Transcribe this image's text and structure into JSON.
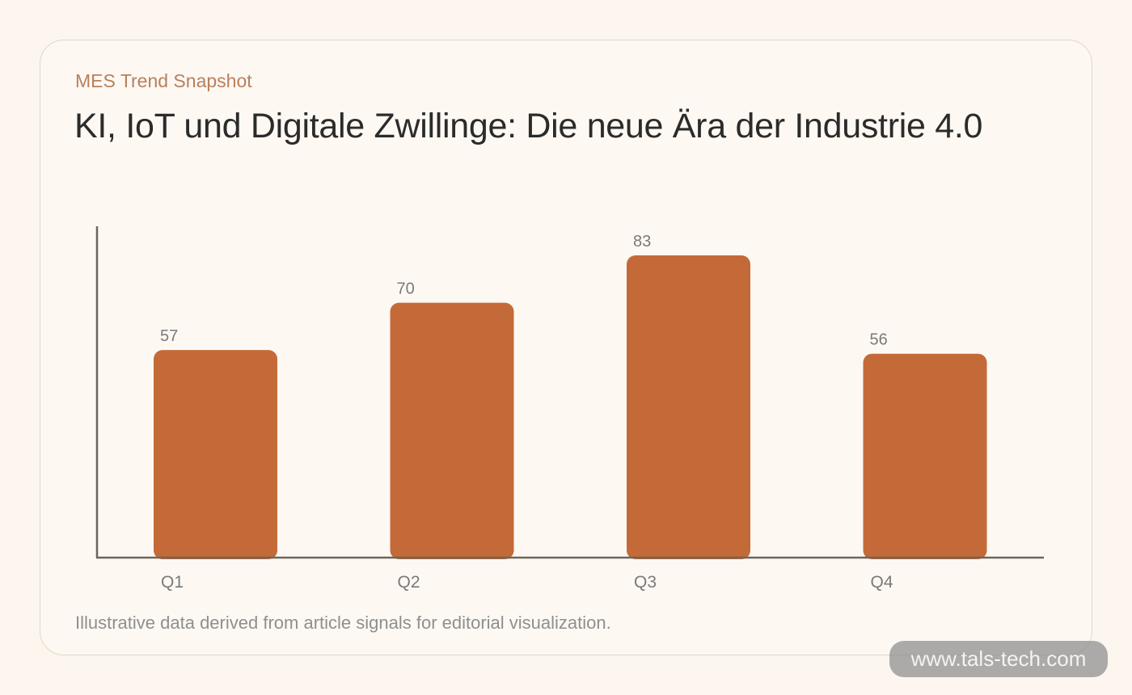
{
  "header": {
    "eyebrow": "MES Trend Snapshot",
    "title": "KI, IoT und Digitale Zwillinge: Die neue Ära der Industrie 4.0"
  },
  "footer": {
    "note": "Illustrative data derived from article signals for editorial visualization."
  },
  "watermark": {
    "text": "www.tals-tech.com"
  },
  "colors": {
    "background": "#fcf6ef",
    "card": "#fdf8f2",
    "bar": "#c46a38",
    "axis": "#6e6558",
    "eyebrow": "#b9805c",
    "label": "#7a7a7a"
  },
  "chart_data": {
    "type": "bar",
    "categories": [
      "Q1",
      "Q2",
      "Q3",
      "Q4"
    ],
    "values": [
      57,
      70,
      83,
      56
    ],
    "title": "",
    "xlabel": "",
    "ylabel": "",
    "ylim": [
      0,
      91
    ],
    "grid": false,
    "legend": "none"
  }
}
